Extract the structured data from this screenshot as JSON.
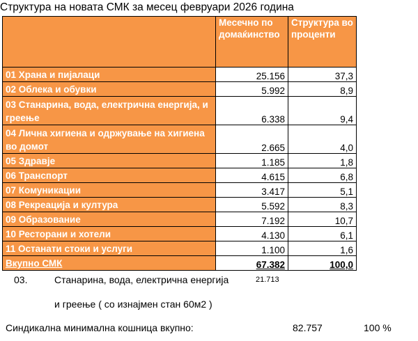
{
  "title": "Структура на новата СМК за месец февруари 2026 година",
  "table": {
    "col2_header": "Месечно по домаќинство",
    "col3_header": "Структура во проценти",
    "rows": [
      {
        "label": "01 Храна и пијалаци",
        "value": "25.156",
        "percent": "37,3"
      },
      {
        "label": "02 Облека и обувки",
        "value": "5.992",
        "percent": "8,9"
      },
      {
        "label": "03 Станарина, вода, електрична енергија, и греење",
        "value": "6.338",
        "percent": "9,4"
      },
      {
        "label": "04 Лична хигиена и одржување на хигиена во домот",
        "value": "2.665",
        "percent": "4,0"
      },
      {
        "label": "05 Здравје",
        "value": "1.185",
        "percent": "1,8"
      },
      {
        "label": "06 Транспорт",
        "value": "4.615",
        "percent": "6,8"
      },
      {
        "label": "07 Комуникации",
        "value": "3.417",
        "percent": "5,1"
      },
      {
        "label": "08 Рекреација и култура",
        "value": "5.592",
        "percent": "8,3"
      },
      {
        "label": "09 Образование",
        "value": "7.192",
        "percent": "10,7"
      },
      {
        "label": "10 Ресторани и хотели",
        "value": "4.130",
        "percent": "6,1"
      },
      {
        "label": "11 Останати стоки и услуги",
        "value": "1.100",
        "percent": "1,6"
      }
    ],
    "total": {
      "label": "Вкупно СМК",
      "value": "67.382",
      "percent": "100,0"
    }
  },
  "note": {
    "number": "03.",
    "line1": "Станарина, вода, електрична енергија",
    "value": "21.713",
    "line2": "и греење ( со изнајмен стан 60м2 )"
  },
  "summary": {
    "label": "Синдикална минимална кошница вкупно:",
    "value": "82.757",
    "percent": "100 %"
  },
  "colors": {
    "header_orange": "#f79646"
  }
}
